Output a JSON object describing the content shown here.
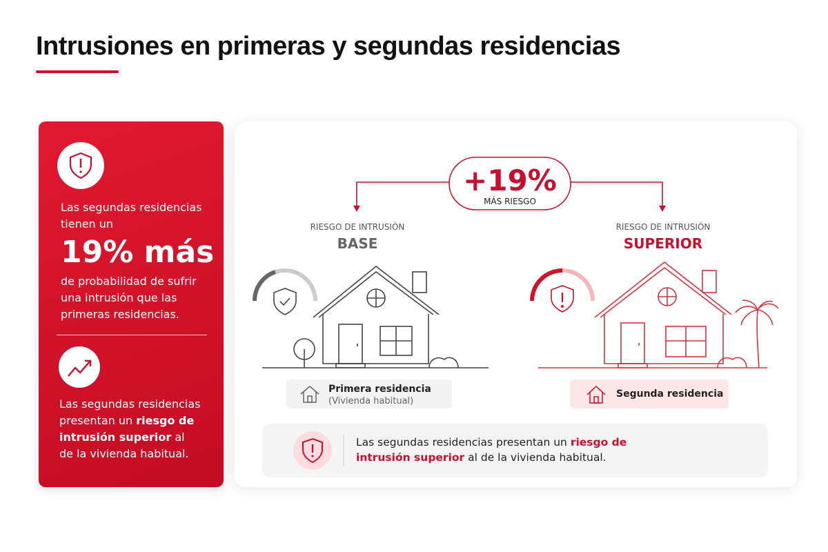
{
  "title": "Intrusiones en primeras y segundas residencias",
  "sidebar": {
    "intro": "Las segundas residencias tienen un",
    "highlight": "19% más",
    "body": "de probabilidad de sufrir una intrusión que las primeras residencias.",
    "note": [
      "Las segundas residencias presentan un",
      "riesgo de intrusión superior",
      "al de la vivienda habitual."
    ]
  },
  "badge": {
    "value": "+19%",
    "label": "MÁS RIESGO"
  },
  "houses": [
    {
      "caption": "RIESGO DE INTRUSIÓN",
      "level": "BASE",
      "name": "Primera residencia",
      "detail": "(Vivienda habitual)"
    },
    {
      "caption": "RIESGO DE INTRUSIÓN",
      "level": "SUPERIOR",
      "name": "Segunda residencia"
    }
  ],
  "footer": [
    "Las segundas residencias presentan un",
    "riesgo de intrusión superior",
    "al de la vivienda habitual."
  ]
}
